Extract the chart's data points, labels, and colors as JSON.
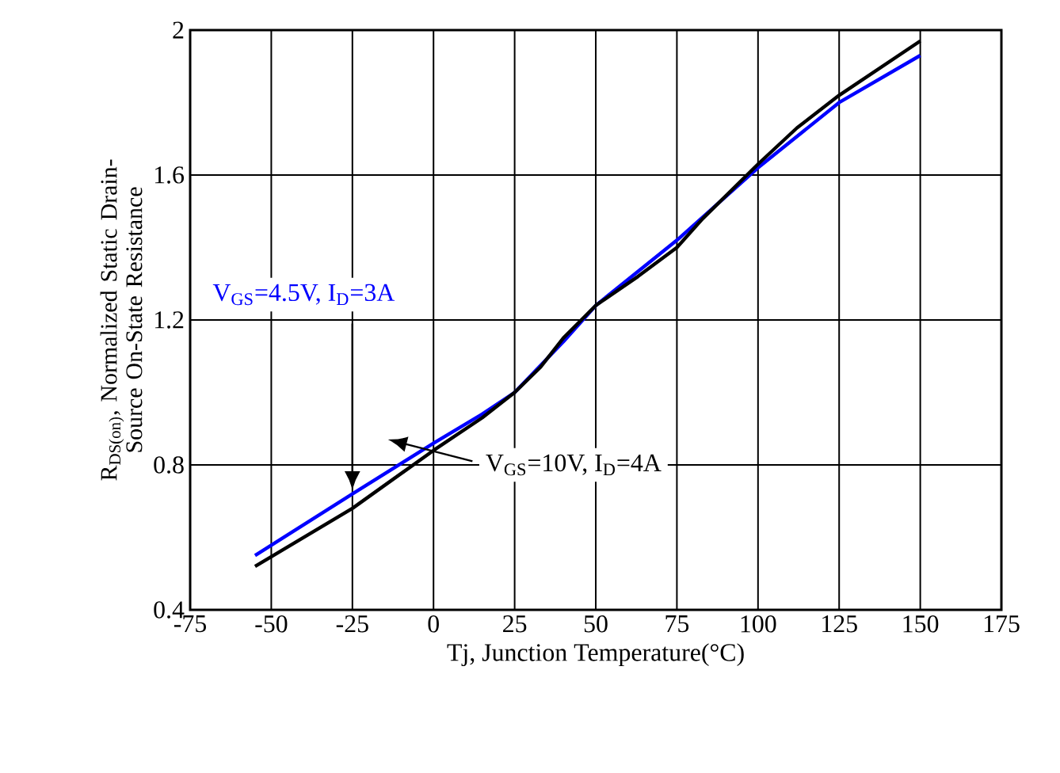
{
  "chart_data": {
    "type": "line",
    "xlabel": "Tj, Junction Temperature(°C)",
    "ylabel": "R$_{DS(on)}$, Normalized Static Drain-Source On-State Resistance",
    "xlim": [
      -75,
      175
    ],
    "ylim": [
      0.4,
      2
    ],
    "xticks": [
      -75,
      -50,
      -25,
      0,
      25,
      50,
      75,
      100,
      125,
      150,
      175
    ],
    "yticks": [
      0.4,
      0.8,
      1.2,
      1.6,
      2
    ],
    "grid": true,
    "marker": "none",
    "line_style": "solid",
    "series": [
      {
        "name": "V$_{GS}$=4.5V, I$_{D}$=3A",
        "color": "#0000ff",
        "x": [
          -55,
          -25,
          0,
          15,
          25,
          40,
          50,
          75,
          100,
          125,
          150
        ],
        "values": [
          0.55,
          0.72,
          0.86,
          0.94,
          1.0,
          1.14,
          1.24,
          1.42,
          1.62,
          1.8,
          1.93
        ]
      },
      {
        "name": "V$_{GS}$=10V, I$_{D}$=4A",
        "color": "#000000",
        "x": [
          -55,
          -25,
          0,
          15,
          25,
          33,
          40,
          50,
          63,
          75,
          83,
          100,
          112,
          125,
          150
        ],
        "values": [
          0.52,
          0.68,
          0.84,
          0.93,
          1.0,
          1.07,
          1.15,
          1.24,
          1.32,
          1.4,
          1.48,
          1.63,
          1.73,
          1.82,
          1.97
        ]
      }
    ]
  }
}
